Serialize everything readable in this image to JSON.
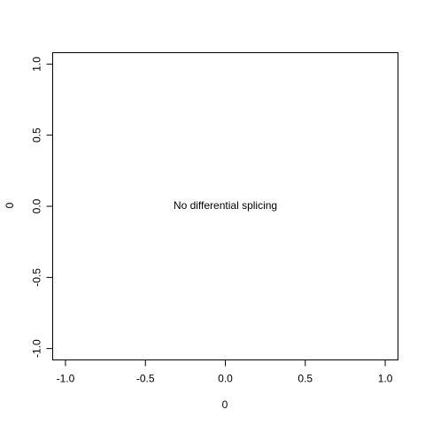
{
  "chart_data": {
    "type": "scatter",
    "title": "",
    "xlabel": "0",
    "ylabel": "0",
    "xlim": [
      -1.08,
      1.08
    ],
    "ylim": [
      -1.08,
      1.08
    ],
    "x_ticks": [
      -1.0,
      -0.5,
      0.0,
      0.5,
      1.0
    ],
    "x_tick_labels": [
      "-1.0",
      "-0.5",
      "0.0",
      "0.5",
      "1.0"
    ],
    "y_ticks": [
      -1.0,
      -0.5,
      0.0,
      0.5,
      1.0
    ],
    "y_tick_labels": [
      "-1.0",
      "-0.5",
      "0.0",
      "0.5",
      "1.0"
    ],
    "series": [],
    "annotations": [
      {
        "text": "No differential splicing",
        "x": 0,
        "y": 0
      }
    ],
    "grid": false,
    "legend": "none"
  }
}
